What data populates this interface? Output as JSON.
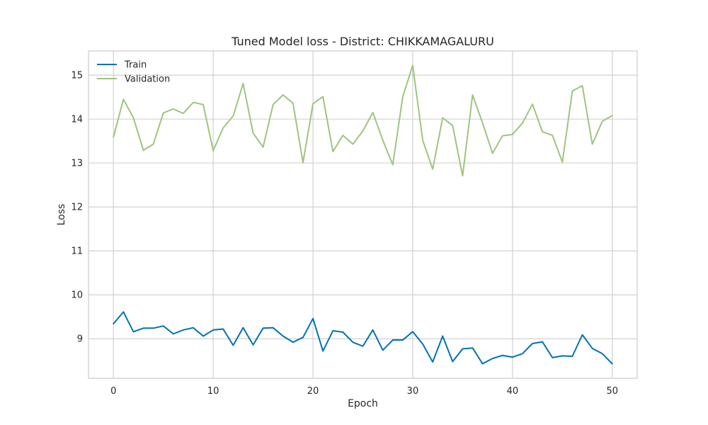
{
  "chart_data": {
    "type": "line",
    "title": "Tuned Model loss - District: CHIKKAMAGALURU",
    "xlabel": "Epoch",
    "ylabel": "Loss",
    "xlim": [
      -2.5,
      52.5
    ],
    "ylim": [
      8.1,
      15.55
    ],
    "xticks": [
      0,
      10,
      20,
      30,
      40,
      50
    ],
    "yticks": [
      9,
      10,
      11,
      12,
      13,
      14,
      15
    ],
    "grid": true,
    "legend_position": "top-left",
    "x": [
      0,
      1,
      2,
      3,
      4,
      5,
      6,
      7,
      8,
      9,
      10,
      11,
      12,
      13,
      14,
      15,
      16,
      17,
      18,
      19,
      20,
      21,
      22,
      23,
      24,
      25,
      26,
      27,
      28,
      29,
      30,
      31,
      32,
      33,
      34,
      35,
      36,
      37,
      38,
      39,
      40,
      41,
      42,
      43,
      44,
      45,
      46,
      47,
      48,
      49,
      50
    ],
    "series": [
      {
        "name": "Train",
        "color": "#0072b2",
        "values": [
          9.34,
          9.61,
          9.16,
          9.24,
          9.24,
          9.29,
          9.11,
          9.2,
          9.25,
          9.06,
          9.2,
          9.22,
          8.85,
          9.25,
          8.86,
          9.24,
          9.25,
          9.06,
          8.92,
          9.03,
          9.46,
          8.72,
          9.18,
          9.15,
          8.92,
          8.83,
          9.2,
          8.74,
          8.97,
          8.97,
          9.16,
          8.88,
          8.47,
          9.06,
          8.48,
          8.77,
          8.79,
          8.43,
          8.55,
          8.62,
          8.58,
          8.66,
          8.89,
          8.93,
          8.57,
          8.61,
          8.6,
          9.09,
          8.78,
          8.66,
          8.43
        ]
      },
      {
        "name": "Validation",
        "color": "#9fc47f",
        "values": [
          13.59,
          14.45,
          14.03,
          13.29,
          13.43,
          14.14,
          14.23,
          14.13,
          14.38,
          14.33,
          13.28,
          13.8,
          14.07,
          14.81,
          13.68,
          13.36,
          14.33,
          14.55,
          14.36,
          13.01,
          14.35,
          14.51,
          13.26,
          13.63,
          13.43,
          13.73,
          14.15,
          13.52,
          12.96,
          14.51,
          15.22,
          13.52,
          12.86,
          14.03,
          13.85,
          12.71,
          14.55,
          13.91,
          13.22,
          13.62,
          13.65,
          13.91,
          14.34,
          13.71,
          13.63,
          13.02,
          14.64,
          14.76,
          13.43,
          13.95,
          14.08
        ]
      }
    ]
  }
}
